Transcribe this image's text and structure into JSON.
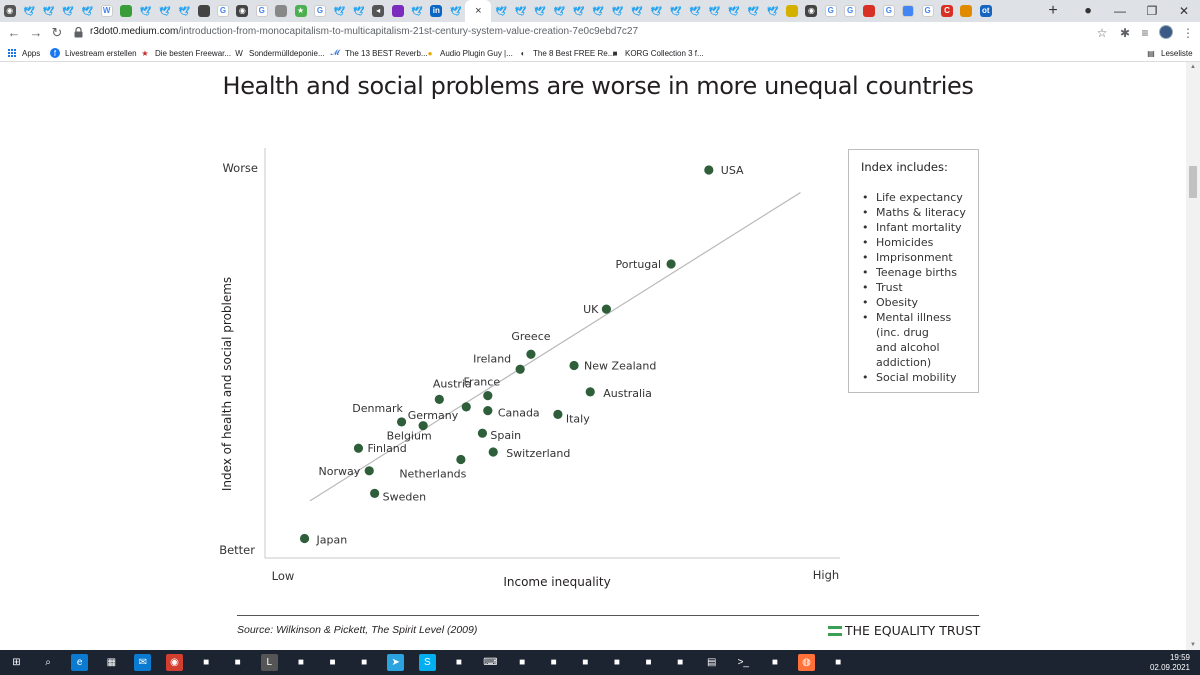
{
  "browser": {
    "tab_icons": [
      "chrome",
      "twitter",
      "twitter-box",
      "twitter",
      "twitter",
      "wikipedia",
      "green",
      "twitter",
      "twitter",
      "twitter",
      "doc",
      "google",
      "chrome-dark",
      "google",
      "basket",
      "star",
      "google",
      "twitter",
      "twitter",
      "back",
      "purple",
      "twitter",
      "linkedin",
      "twitter",
      "active",
      "twitter",
      "twitter",
      "twitter",
      "twitter",
      "twitter",
      "twitter",
      "twitter",
      "twitter",
      "twitter",
      "twitter",
      "twitter",
      "twitter",
      "twitter",
      "twitter",
      "twitter",
      "circle",
      "chrome-dark",
      "google",
      "google",
      "red",
      "google",
      "translate",
      "google",
      "red-c",
      "game",
      "ot"
    ],
    "close_glyph": "×",
    "new_tab_glyph": "+",
    "url_host": "r3dot0.medium.com",
    "url_path": "/introduction-from-monocapitalism-to-multicapitalism-21st-century-system-value-creation-7e0c9ebd7c27",
    "reading_list": "Leseliste",
    "bookmarks": [
      {
        "label": "Apps",
        "icon": "apps-grid-icon"
      },
      {
        "label": "Livestream erstellen",
        "icon": "facebook-icon",
        "color": "#1877f2"
      },
      {
        "label": "Die besten Freewar...",
        "icon": "star-icon",
        "color": "#c62828"
      },
      {
        "label": "Sondermülldeponie...",
        "icon": "wikipedia-icon",
        "color": "#222222"
      },
      {
        "label": "The 13 BEST Reverb...",
        "icon": "music-icon",
        "color": "#2f6fd6"
      },
      {
        "label": "Audio Plugin Guy |...",
        "icon": "plugin-icon",
        "color": "#e6a700"
      },
      {
        "label": "The 8 Best FREE Re...",
        "icon": "moon-icon",
        "color": "#333333"
      },
      {
        "label": "KORG Collection 3 f...",
        "icon": "korg-icon",
        "color": "#333333"
      }
    ]
  },
  "chart_data": {
    "type": "scatter",
    "title": "Health and social problems are worse in more unequal countries",
    "xlabel": "Income inequality",
    "ylabel": "Index of health and social problems",
    "x_end_labels": [
      "Low",
      "High"
    ],
    "y_end_labels": [
      "Better",
      "Worse"
    ],
    "xlim": [
      0,
      100
    ],
    "ylim": [
      0,
      100
    ],
    "point_color": "#2e5e3a",
    "trendline": {
      "x": [
        5,
        96
      ],
      "y": [
        12,
        94
      ]
    },
    "points": [
      {
        "label": "USA",
        "x": 79,
        "y": 100
      },
      {
        "label": "Portugal",
        "x": 72,
        "y": 75
      },
      {
        "label": "UK",
        "x": 60,
        "y": 63
      },
      {
        "label": "Greece",
        "x": 46,
        "y": 51
      },
      {
        "label": "New Zealand",
        "x": 54,
        "y": 48
      },
      {
        "label": "Ireland",
        "x": 44,
        "y": 47
      },
      {
        "label": "Australia",
        "x": 57,
        "y": 41
      },
      {
        "label": "France",
        "x": 38,
        "y": 40
      },
      {
        "label": "Austria",
        "x": 29,
        "y": 39
      },
      {
        "label": "Germany",
        "x": 34,
        "y": 37
      },
      {
        "label": "Canada",
        "x": 38,
        "y": 36
      },
      {
        "label": "Italy",
        "x": 51,
        "y": 35
      },
      {
        "label": "Denmark",
        "x": 22,
        "y": 33
      },
      {
        "label": "Belgium",
        "x": 26,
        "y": 32
      },
      {
        "label": "Spain",
        "x": 37,
        "y": 30
      },
      {
        "label": "Finland",
        "x": 14,
        "y": 26
      },
      {
        "label": "Switzerland",
        "x": 39,
        "y": 25
      },
      {
        "label": "Netherlands",
        "x": 33,
        "y": 23
      },
      {
        "label": "Norway",
        "x": 16,
        "y": 20
      },
      {
        "label": "Sweden",
        "x": 17,
        "y": 14
      },
      {
        "label": "Japan",
        "x": 4,
        "y": 2
      }
    ]
  },
  "legend": {
    "title": "Index includes:",
    "items": [
      "Life expectancy",
      "Maths & literacy",
      "Infant mortality",
      "Homicides",
      "Imprisonment",
      "Teenage births",
      "Trust",
      "Obesity",
      "Mental illness (inc. drug and alcohol addiction)",
      "Social mobility"
    ]
  },
  "footer": {
    "source": "Source: Wilkinson & Pickett, The Spirit Level (2009)",
    "brand": "THE EQUALITY TRUST",
    "brand_color": "#3aa055"
  },
  "taskbar": {
    "time": "19:59",
    "date": "02.09.2021",
    "apps": [
      "start-icon",
      "search-icon",
      "edge-icon",
      "store-icon",
      "mail-icon",
      "chrome-icon",
      "app-icon",
      "app-icon",
      "live-icon",
      "app-icon",
      "app-icon",
      "app-icon",
      "telegram-icon",
      "skype-icon",
      "app-icon",
      "keyboard-icon",
      "app-icon",
      "app-icon",
      "app-icon",
      "app-icon",
      "app-icon",
      "app-icon",
      "calculator-icon",
      "terminal-icon",
      "app-icon",
      "firefox-icon",
      "app-icon"
    ]
  }
}
